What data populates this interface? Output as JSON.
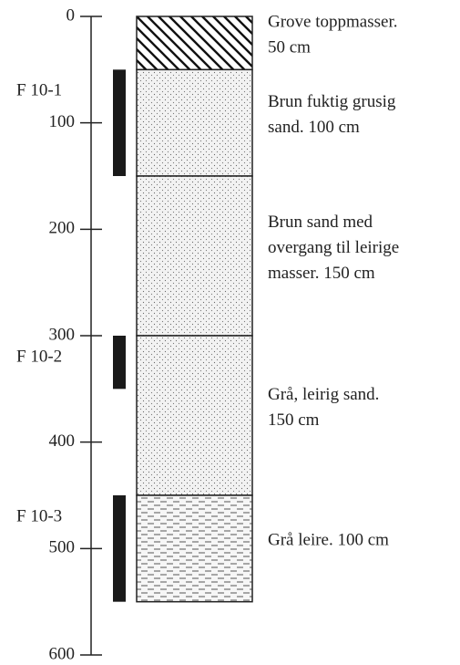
{
  "axis": {
    "ylim": [
      0,
      600
    ],
    "yticks": [
      0,
      100,
      200,
      300,
      400,
      500,
      600
    ]
  },
  "layers": [
    {
      "top": 0,
      "bottom": 50,
      "pattern": "hatch",
      "label": [
        "Grove toppmasser.",
        "50 cm"
      ]
    },
    {
      "top": 50,
      "bottom": 150,
      "pattern": "dots",
      "label": [
        "Brun fuktig grusig",
        "sand. 100 cm"
      ]
    },
    {
      "top": 150,
      "bottom": 300,
      "pattern": "dots",
      "label": [
        "Brun sand med",
        {
          "text": "overgang til leirige",
          "color": "#3a7a3a"
        },
        "masser. 150 cm"
      ]
    },
    {
      "top": 300,
      "bottom": 450,
      "pattern": "dots",
      "label": [
        "Grå, leirig sand.",
        "150 cm"
      ]
    },
    {
      "top": 450,
      "bottom": 550,
      "pattern": "dashes",
      "label": [
        "Grå leire. 100 cm"
      ]
    }
  ],
  "samples": [
    {
      "name": "F 10-1",
      "top": 50,
      "bottom": 150
    },
    {
      "name": "F 10-2",
      "top": 300,
      "bottom": 350
    },
    {
      "name": "F 10-3",
      "top": 450,
      "bottom": 550
    }
  ]
}
